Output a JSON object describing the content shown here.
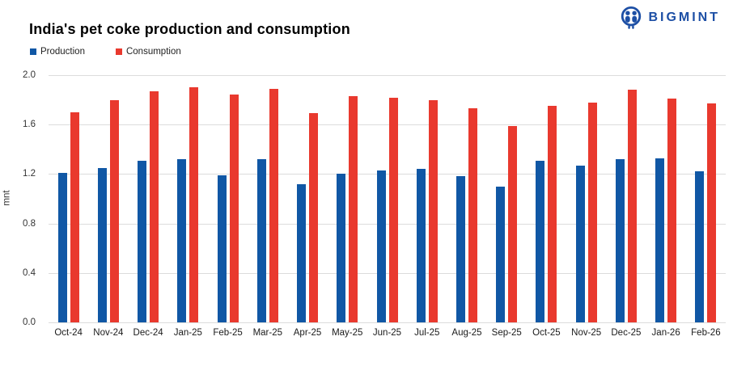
{
  "header": {
    "title": "India's pet coke production and consumption",
    "brand": {
      "name": "BIGMINT",
      "color": "#1d4fa5"
    }
  },
  "legend": [
    {
      "label": "Production",
      "color": "#1057a5"
    },
    {
      "label": "Consumption",
      "color": "#e9392e"
    }
  ],
  "chart_data": {
    "type": "bar",
    "title": "India's pet coke production and consumption",
    "categories": [
      "Oct-24",
      "Nov-24",
      "Dec-24",
      "Jan-25",
      "Feb-25",
      "Mar-25",
      "Apr-25",
      "May-25",
      "Jun-25",
      "Jul-25",
      "Aug-25",
      "Sep-25",
      "Oct-25",
      "Nov-25",
      "Dec-25",
      "Jan-26",
      "Feb-26"
    ],
    "series": [
      {
        "name": "Production",
        "color": "#1057a5",
        "values": [
          1.21,
          1.25,
          1.31,
          1.32,
          1.19,
          1.32,
          1.12,
          1.2,
          1.23,
          1.24,
          1.18,
          1.1,
          1.31,
          1.27,
          1.32,
          1.33,
          1.22
        ]
      },
      {
        "name": "Consumption",
        "color": "#e9392e",
        "values": [
          1.7,
          1.8,
          1.87,
          1.9,
          1.84,
          1.89,
          1.69,
          1.83,
          1.82,
          1.8,
          1.73,
          1.59,
          1.75,
          1.78,
          1.88,
          1.81,
          1.77
        ]
      }
    ],
    "xlabel": "",
    "ylabel": "mnt",
    "ylim": [
      0,
      2.0
    ],
    "yticks": [
      0.0,
      0.4,
      0.8,
      1.2,
      1.6,
      2.0
    ],
    "grid": "horizontal",
    "legend_position": "top-left"
  }
}
